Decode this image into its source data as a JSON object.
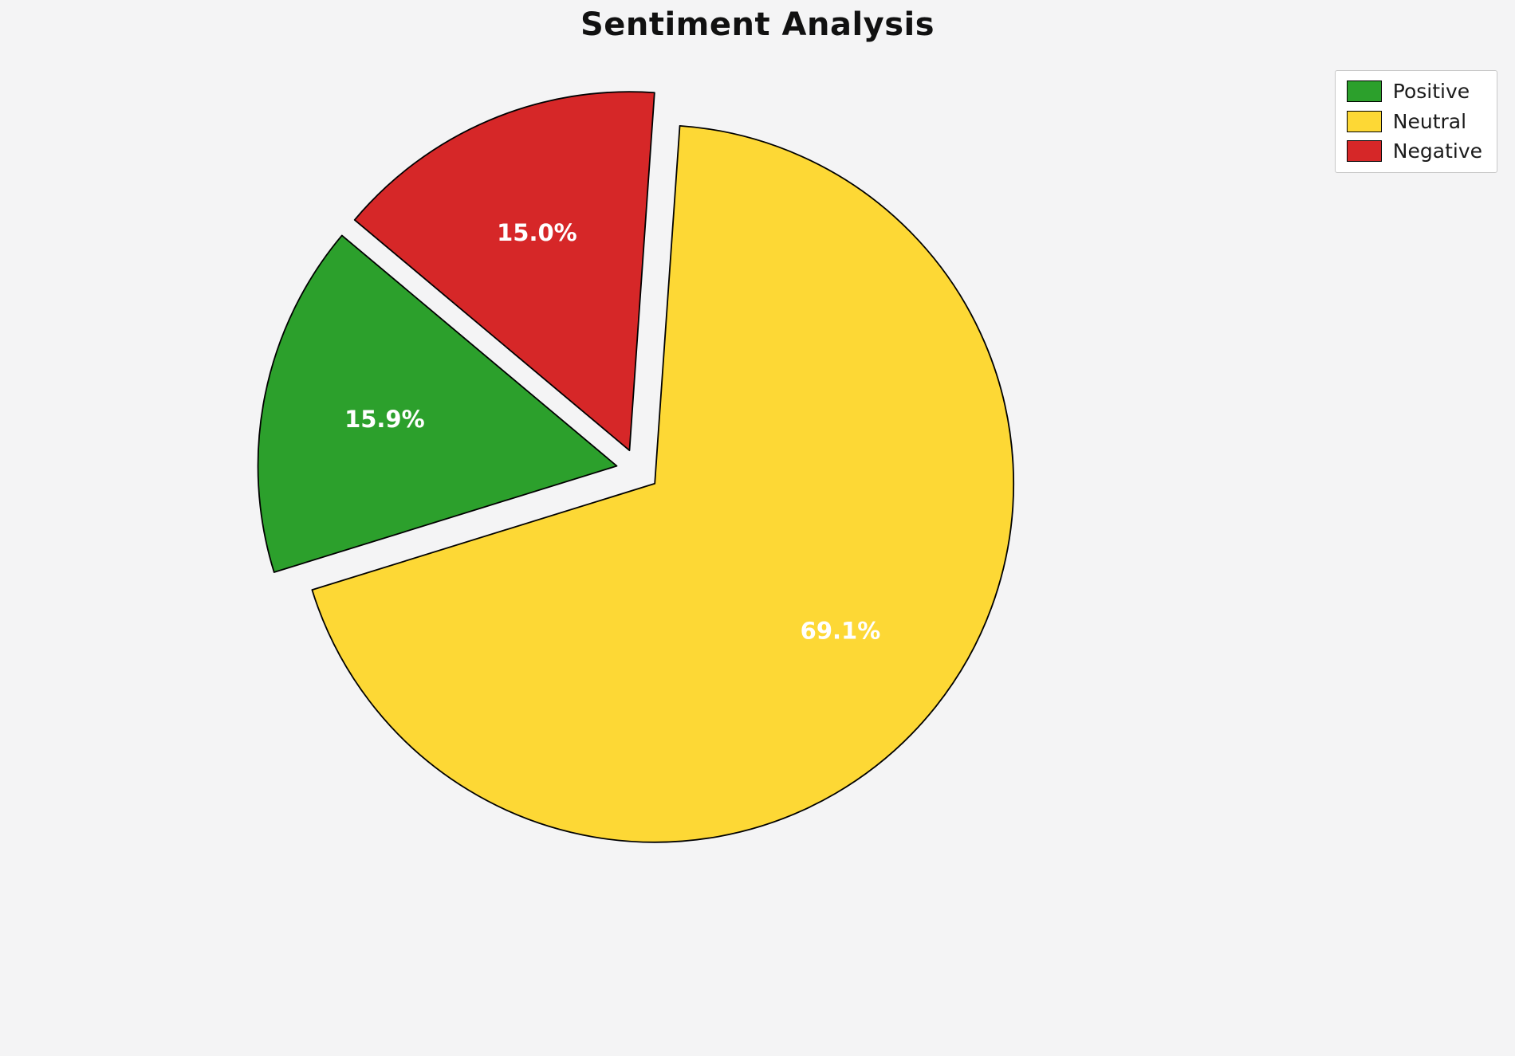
{
  "title": "Sentiment Analysis",
  "background_color": "#f4f4f5",
  "chart_data": {
    "type": "pie",
    "title": "Sentiment Analysis",
    "labels": [
      "Positive",
      "Neutral",
      "Negative"
    ],
    "values": [
      15.9,
      69.1,
      15.0
    ],
    "pct_labels": [
      "15.9%",
      "69.1%",
      "15.0%"
    ],
    "colors": [
      "#2ca02c",
      "#fdd835",
      "#d62728"
    ],
    "edge_color": "#000000",
    "pct_label_color": "#ffffff",
    "startangle": 140,
    "counterclock": true,
    "explode": [
      0.06,
      0.06,
      0.06
    ],
    "legend_position": "upper right",
    "legend_entries": [
      "Positive",
      "Neutral",
      "Negative"
    ]
  }
}
